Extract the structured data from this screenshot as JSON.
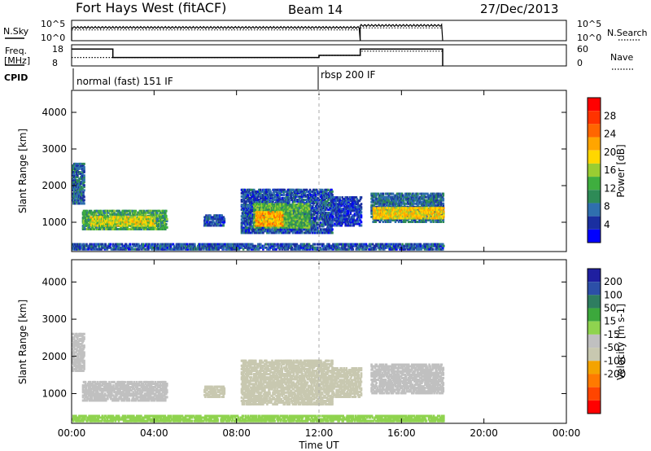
{
  "header": {
    "title": "Fort Hays West (fitACF)",
    "beam": "Beam 14",
    "date": "27/Dec/2013"
  },
  "left_labels": {
    "nsky": "N.Sky",
    "freq": "Freq.",
    "freq_unit": "[MHz]",
    "cpid": "CPID"
  },
  "right_labels": {
    "nsearch": "N.Search",
    "nave": "Nave"
  },
  "cpid_labels": [
    "normal (fast) 151 IF",
    "rbsp 200 IF"
  ],
  "time_axis": {
    "label": "Time UT",
    "ticks": [
      "00:00",
      "04:00",
      "08:00",
      "12:00",
      "16:00",
      "20:00",
      "00:00"
    ]
  },
  "colors": {
    "noise_trace": "#000000",
    "power_scale": [
      "#0000ff",
      "#1a2fa0",
      "#2f6fae",
      "#2e8b57",
      "#3fae3f",
      "#9acd32",
      "#ffd700",
      "#ffa500",
      "#ff6600",
      "#ff3300",
      "#ff0000"
    ],
    "velocity_scale": [
      "#1f1fa0",
      "#2c4fa8",
      "#2e7d60",
      "#3ca83c",
      "#8fd34f",
      "#c0c0c0",
      "#c8c8b0",
      "#f4a300",
      "#ff7a00",
      "#ff4500",
      "#ff0000"
    ]
  },
  "chart_data": [
    {
      "type": "line",
      "panel": "noise",
      "left_axis": {
        "label": "N.Sky",
        "ticks": [
          "10^5",
          "10^0"
        ]
      },
      "right_axis": {
        "label": "N.Search",
        "ticks": [
          "10^5",
          "10^0"
        ]
      },
      "series": [
        {
          "name": "N.Sky",
          "segments": [
            {
              "x": [
                0.0,
                14.0
              ],
              "level": 0.35
            },
            {
              "x": [
                14.0,
                18.0
              ],
              "level": 0.25
            }
          ]
        }
      ],
      "x_range": [
        0,
        24
      ]
    },
    {
      "type": "line",
      "panel": "frequency",
      "left_axis": {
        "label": "Freq. [MHz]",
        "ticks": [
          18,
          8
        ],
        "ylim": [
          8,
          18
        ]
      },
      "right_axis": {
        "label": "Nave",
        "ticks": [
          60,
          0
        ],
        "ylim": [
          0,
          60
        ]
      },
      "series": [
        {
          "name": "Freq.",
          "points": [
            [
              0.0,
              16.0
            ],
            [
              2.0,
              16.0
            ],
            [
              2.0,
              12.0
            ],
            [
              12.0,
              12.0
            ],
            [
              12.0,
              13.0
            ],
            [
              14.0,
              13.0
            ],
            [
              14.0,
              16.0
            ],
            [
              18.0,
              16.0
            ],
            [
              18.0,
              8.0
            ]
          ]
        },
        {
          "name": "Nave",
          "points": [
            [
              0.0,
              24
            ],
            [
              2.0,
              24
            ],
            [
              2.0,
              24
            ],
            [
              12.0,
              24
            ],
            [
              12.0,
              30
            ],
            [
              14.0,
              30
            ],
            [
              14.0,
              42
            ],
            [
              18.0,
              42
            ]
          ]
        }
      ],
      "x_range": [
        0,
        24
      ]
    },
    {
      "type": "heatmap",
      "panel": "power",
      "ylabel": "Slant Range [km]",
      "yticks": [
        1000,
        2000,
        3000,
        4000
      ],
      "ylim": [
        200,
        4600
      ],
      "x_range": [
        0,
        24
      ],
      "colorbar": {
        "label": "Power [dB]",
        "ticks": [
          4,
          8,
          12,
          16,
          20,
          24,
          28
        ]
      },
      "regions": [
        {
          "t": [
            0.0,
            0.6
          ],
          "r": [
            1500,
            2600
          ],
          "v": 8
        },
        {
          "t": [
            0.5,
            4.6
          ],
          "r": [
            800,
            1300
          ],
          "v": 12
        },
        {
          "t": [
            0.9,
            4.0
          ],
          "r": [
            900,
            1150
          ],
          "v": 18
        },
        {
          "t": [
            6.4,
            7.4
          ],
          "r": [
            900,
            1200
          ],
          "v": 6
        },
        {
          "t": [
            8.2,
            12.6
          ],
          "r": [
            700,
            1900
          ],
          "v": 6
        },
        {
          "t": [
            8.8,
            11.5
          ],
          "r": [
            850,
            1500
          ],
          "v": 14
        },
        {
          "t": [
            8.9,
            10.2
          ],
          "r": [
            900,
            1300
          ],
          "v": 22
        },
        {
          "t": [
            12.6,
            14.0
          ],
          "r": [
            900,
            1700
          ],
          "v": 5
        },
        {
          "t": [
            14.5,
            18.0
          ],
          "r": [
            1000,
            1800
          ],
          "v": 8
        },
        {
          "t": [
            14.6,
            18.0
          ],
          "r": [
            1100,
            1400
          ],
          "v": 20
        },
        {
          "t": [
            0.0,
            18.0
          ],
          "r": [
            250,
            420
          ],
          "v": 6
        }
      ]
    },
    {
      "type": "heatmap",
      "panel": "velocity",
      "ylabel": "Slant Range [km]",
      "yticks": [
        1000,
        2000,
        3000,
        4000
      ],
      "ylim": [
        200,
        4600
      ],
      "x_range": [
        0,
        24
      ],
      "colorbar": {
        "label": "Velocity [m s-1]",
        "ticks": [
          200,
          100,
          50,
          15,
          -15,
          -50,
          -100,
          -200
        ]
      },
      "regions": [
        {
          "t": [
            0.0,
            0.6
          ],
          "r": [
            1600,
            2600
          ],
          "v": 0
        },
        {
          "t": [
            0.5,
            4.6
          ],
          "r": [
            800,
            1300
          ],
          "v": 0
        },
        {
          "t": [
            6.4,
            7.4
          ],
          "r": [
            900,
            1200
          ],
          "v": -40
        },
        {
          "t": [
            8.2,
            12.6
          ],
          "r": [
            700,
            1900
          ],
          "v": -40
        },
        {
          "t": [
            12.6,
            14.0
          ],
          "r": [
            900,
            1700
          ],
          "v": -40
        },
        {
          "t": [
            14.5,
            18.0
          ],
          "r": [
            1000,
            1800
          ],
          "v": 0
        },
        {
          "t": [
            0.0,
            18.0
          ],
          "r": [
            250,
            420
          ],
          "v": 30
        }
      ]
    }
  ]
}
